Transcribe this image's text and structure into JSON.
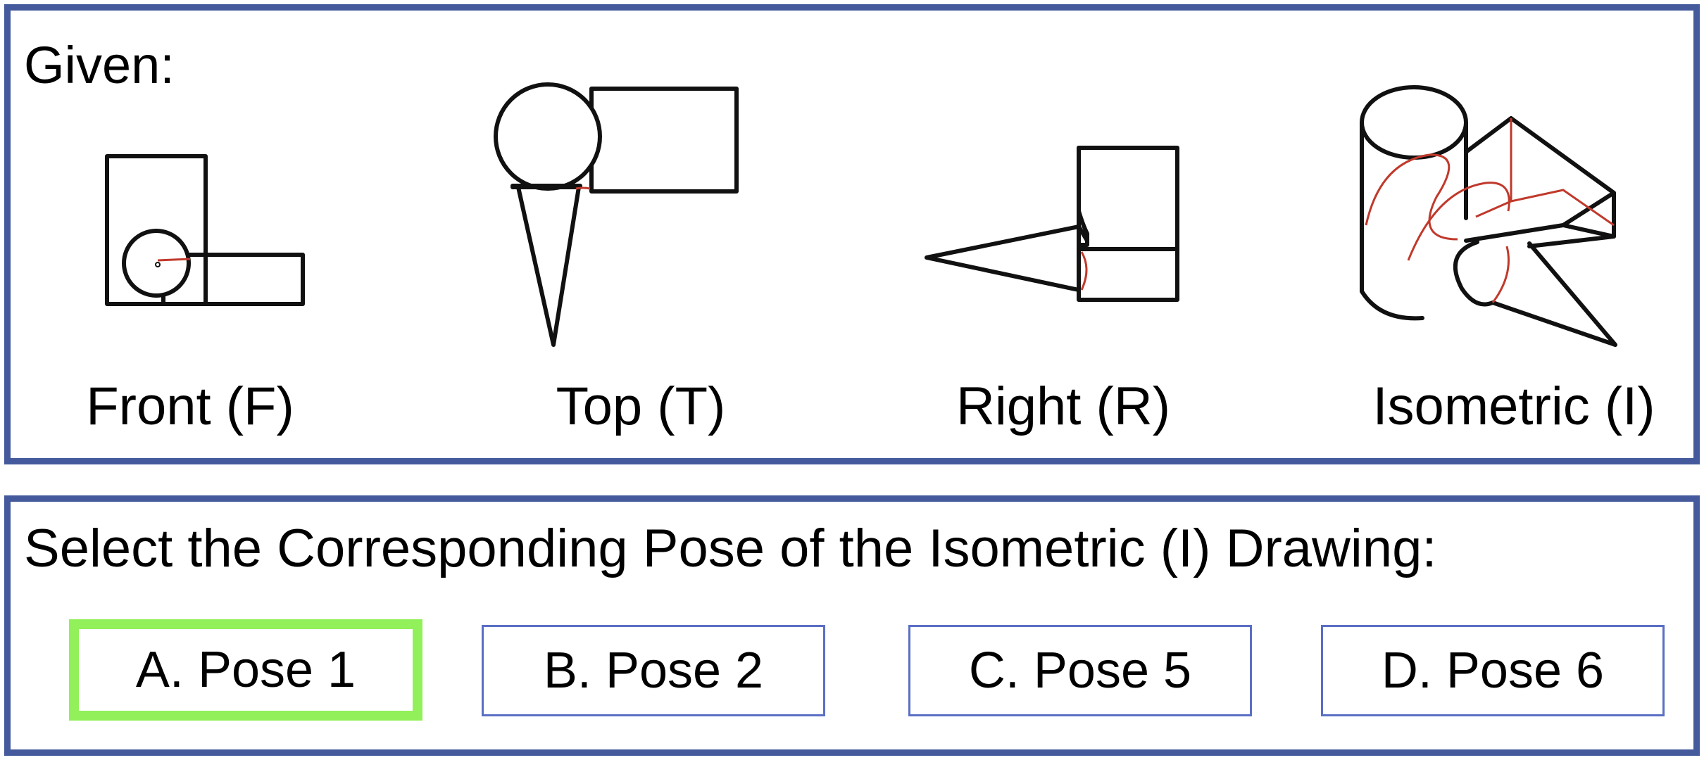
{
  "given": {
    "heading": "Given:",
    "views": [
      {
        "label": "Front (F)",
        "icon": "front-view-drawing"
      },
      {
        "label": "Top (T)",
        "icon": "top-view-drawing"
      },
      {
        "label": "Right (R)",
        "icon": "right-view-drawing"
      },
      {
        "label": "Isometric (I)",
        "icon": "isometric-view-drawing"
      }
    ]
  },
  "question": {
    "heading": "Select the Corresponding Pose of the Isometric (I) Drawing:",
    "selected_index": 0,
    "options": [
      {
        "label": "A. Pose 1"
      },
      {
        "label": "B. Pose 2"
      },
      {
        "label": "C. Pose 5"
      },
      {
        "label": "D. Pose 6"
      }
    ]
  },
  "colors": {
    "panel_border": "#445a9c",
    "option_border": "#5a6fc4",
    "selected_border": "#92f05a",
    "hidden_line": "#c0392b"
  }
}
